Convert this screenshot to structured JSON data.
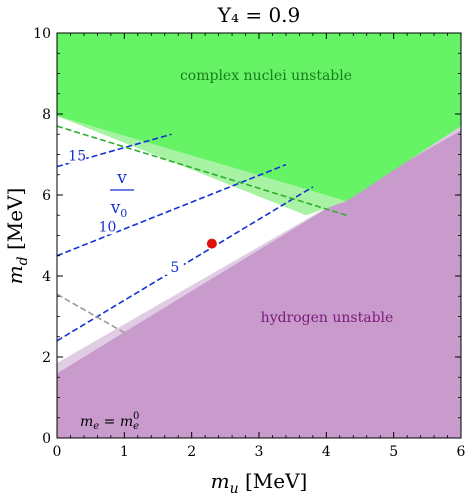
{
  "chart_data": {
    "type": "area",
    "title": "Y₄ = 0.9",
    "xlabel_main": "m",
    "xlabel_sub": "u",
    "xlabel_unit": " [MeV]",
    "ylabel_main": "m",
    "ylabel_sub": "d",
    "ylabel_unit": " [MeV]",
    "xlim": [
      0,
      6
    ],
    "ylim": [
      0,
      10
    ],
    "x_ticks": [
      0,
      1,
      2,
      3,
      4,
      5,
      6
    ],
    "y_ticks": [
      0,
      2,
      4,
      6,
      8,
      10
    ],
    "regions": {
      "complex_unstable_dark": [
        [
          0,
          7.95
        ],
        [
          0,
          10
        ],
        [
          6,
          10
        ],
        [
          6,
          7.7
        ],
        [
          4.3,
          5.85
        ]
      ],
      "complex_unstable_light": [
        [
          0,
          7.95
        ],
        [
          4.3,
          5.85
        ],
        [
          3.7,
          5.5
        ]
      ],
      "hydrogen_unstable": [
        [
          0,
          0
        ],
        [
          6,
          0
        ],
        [
          6,
          7.7
        ],
        [
          0,
          1.6
        ]
      ],
      "hydrogen_edge_light": [
        [
          0,
          1.6
        ],
        [
          6,
          7.7
        ],
        [
          6,
          7.6
        ],
        [
          0,
          1.85
        ]
      ]
    },
    "colors": {
      "complex_dark": "#66f466",
      "complex_light": "#a8f2a3",
      "hydrogen": "#c89bcc",
      "hydrogen_light": "#e0cce3",
      "contour_blue": "#1430d6",
      "contour_green": "#2db02d",
      "contour_gray": "#9a9a9a",
      "point": "#e01010"
    },
    "contours": [
      {
        "label": "15",
        "color": "blue",
        "x": [
          0,
          1.7
        ],
        "y": [
          6.7,
          7.5
        ],
        "label_at": [
          0.3,
          6.95
        ]
      },
      {
        "label": "10",
        "color": "blue",
        "x": [
          0,
          3.4
        ],
        "y": [
          4.5,
          6.75
        ],
        "label_at": [
          0.75,
          5.2
        ]
      },
      {
        "label": "5",
        "color": "blue",
        "x": [
          0,
          3.8
        ],
        "y": [
          2.4,
          6.2
        ],
        "label_at": [
          1.75,
          4.2
        ]
      },
      {
        "label": "",
        "color": "green",
        "x": [
          0,
          4.3
        ],
        "y": [
          7.7,
          5.5
        ]
      },
      {
        "label": "",
        "color": "gray",
        "x": [
          0,
          1
        ],
        "y": [
          3.55,
          2.6
        ]
      }
    ],
    "contour_fraction_num": "v",
    "contour_fraction_den_main": "v",
    "contour_fraction_den_sub": "0",
    "point": {
      "x": 2.3,
      "y": 4.8
    },
    "annotations": {
      "complex": "complex nuclei unstable",
      "hydrogen": "hydrogen unstable",
      "me_lhs_main": "m",
      "me_lhs_sub": "e",
      "me_eq": " = ",
      "me_rhs_main": "m",
      "me_rhs_sub": "e",
      "me_rhs_sup": "0"
    }
  }
}
